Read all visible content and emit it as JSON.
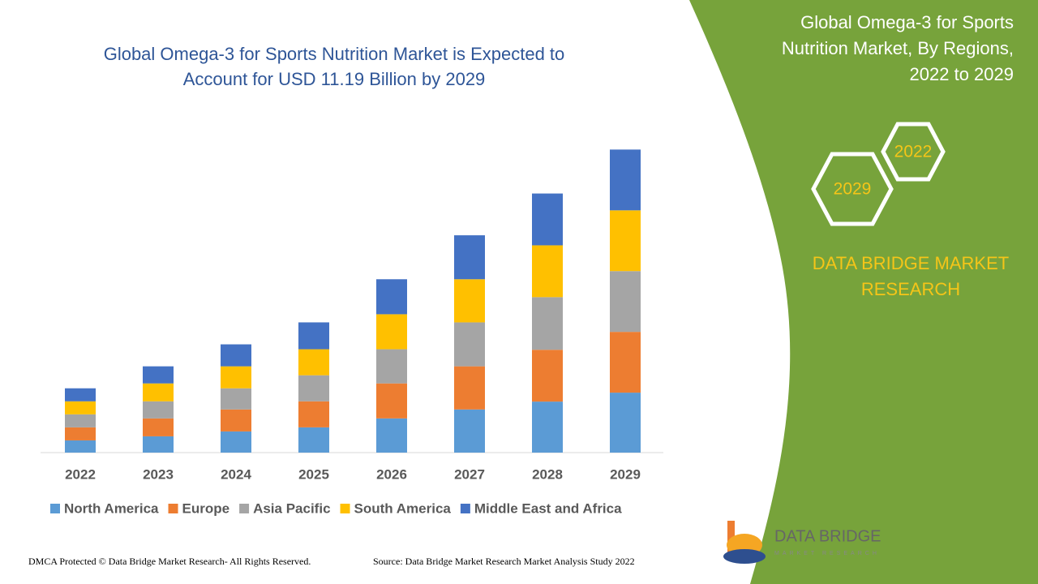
{
  "chart_data": {
    "type": "stacked-bar",
    "title": [
      "Global Omega-3 for Sports Nutrition Market is Expected to",
      "Account for USD 11.19 Billion by 2029"
    ],
    "categories": [
      "2022",
      "2023",
      "2024",
      "2025",
      "2026",
      "2027",
      "2028",
      "2029"
    ],
    "series": [
      {
        "name": "North America",
        "color": "#5b9bd5",
        "values": [
          0.45,
          0.6,
          0.78,
          0.93,
          1.26,
          1.59,
          1.88,
          2.21
        ]
      },
      {
        "name": "Europe",
        "color": "#ed7d31",
        "values": [
          0.48,
          0.66,
          0.81,
          0.96,
          1.29,
          1.59,
          1.91,
          2.24
        ]
      },
      {
        "name": "Asia Pacific",
        "color": "#a5a5a5",
        "values": [
          0.48,
          0.63,
          0.78,
          0.96,
          1.26,
          1.62,
          1.94,
          2.24
        ]
      },
      {
        "name": "South America",
        "color": "#ffc000",
        "values": [
          0.48,
          0.66,
          0.81,
          0.96,
          1.29,
          1.59,
          1.91,
          2.24
        ]
      },
      {
        "name": "Middle East and Africa",
        "color": "#4472c4",
        "values": [
          0.48,
          0.63,
          0.81,
          0.99,
          1.29,
          1.62,
          1.91,
          2.24
        ]
      }
    ],
    "ylim": [
      0,
      11.6
    ]
  },
  "panel": {
    "title": [
      "Global Omega-3 for Sports",
      "Nutrition Market, By Regions,",
      "2022 to 2029"
    ],
    "years": [
      "2022",
      "2029"
    ],
    "brand": [
      "DATA BRIDGE MARKET",
      "RESEARCH"
    ]
  },
  "logo": {
    "name": "DATA BRIDGE",
    "tagline": "MARKET RESEARCH"
  },
  "footer": {
    "copyright": "DMCA Protected © Data Bridge Market Research- All Rights Reserved.",
    "source": "Source: Data Bridge Market Research Market Analysis Study 2022"
  }
}
